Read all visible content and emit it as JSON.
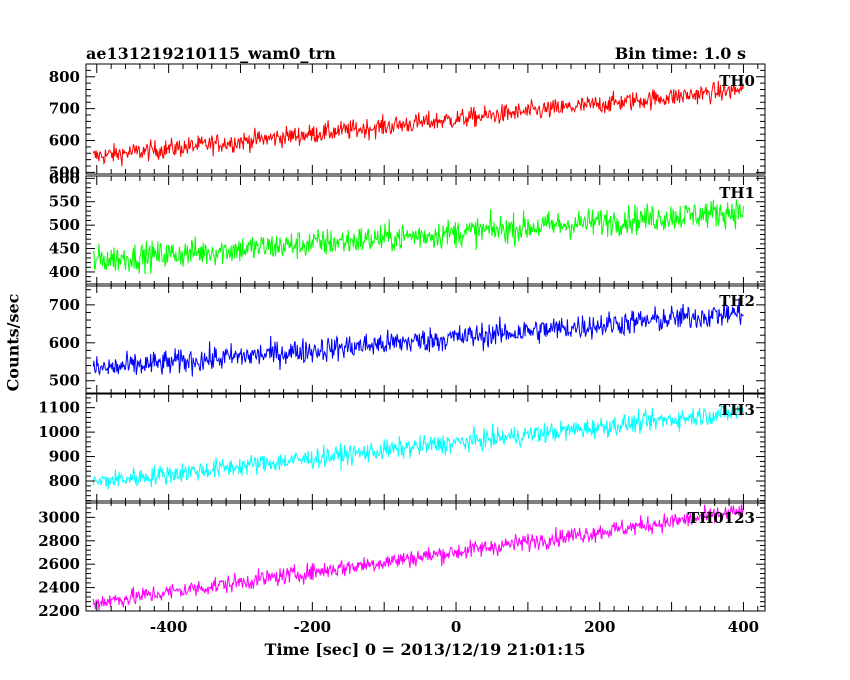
{
  "header": {
    "title": "ae131219210115_wam0_trn",
    "bin_time": "Bin time: 1.0 s"
  },
  "chart_data": {
    "type": "line",
    "title": "ae131219210115_wam0_trn",
    "subtitle": "Bin time: 1.0 s",
    "xlabel": "Time [sec] 0 = 2013/12/19 21:01:15",
    "ylabel": "Counts/sec",
    "xlim": [
      -515,
      430
    ],
    "x_ticks": [
      -400,
      -200,
      0,
      200,
      400
    ],
    "x_range_data": [
      -505,
      400
    ],
    "x_step": 1.0,
    "grid": false,
    "panels": [
      {
        "name": "TH0",
        "color": "#ff0000",
        "ylim": [
          495,
          840
        ],
        "y_ticks": [
          500,
          600,
          700,
          800
        ],
        "trend_start": 550,
        "trend_end": 760,
        "noise": 22,
        "series": [
          {
            "name": "TH0",
            "x": [
              -500,
              -400,
              -300,
              -200,
              -100,
              0,
              100,
              200,
              300,
              400
            ],
            "values": [
              550,
              570,
              595,
              615,
              640,
              665,
              690,
              715,
              740,
              760
            ]
          }
        ]
      },
      {
        "name": "TH1",
        "color": "#00ff00",
        "ylim": [
          370,
          605
        ],
        "y_ticks": [
          400,
          450,
          500,
          550,
          600
        ],
        "trend_start": 425,
        "trend_end": 530,
        "noise": 22,
        "series": [
          {
            "name": "TH1",
            "x": [
              -500,
              -400,
              -300,
              -200,
              -100,
              0,
              100,
              200,
              300,
              400
            ],
            "values": [
              425,
              437,
              448,
              460,
              472,
              484,
              495,
              507,
              518,
              530
            ]
          }
        ]
      },
      {
        "name": "TH2",
        "color": "#0000ff",
        "ylim": [
          465,
          755
        ],
        "y_ticks": [
          500,
          600,
          700
        ],
        "trend_start": 530,
        "trend_end": 680,
        "noise": 24,
        "series": [
          {
            "name": "TH2",
            "x": [
              -500,
              -400,
              -300,
              -200,
              -100,
              0,
              100,
              200,
              300,
              400
            ],
            "values": [
              530,
              545,
              563,
              580,
              597,
              613,
              630,
              647,
              663,
              680
            ]
          }
        ]
      },
      {
        "name": "TH3",
        "color": "#00ffff",
        "ylim": [
          710,
          1160
        ],
        "y_ticks": [
          800,
          900,
          1000,
          1100
        ],
        "trend_start": 795,
        "trend_end": 1085,
        "noise": 30,
        "series": [
          {
            "name": "TH3",
            "x": [
              -500,
              -400,
              -300,
              -200,
              -100,
              0,
              100,
              200,
              300,
              400
            ],
            "values": [
              795,
              827,
              860,
              892,
              924,
              956,
              988,
              1021,
              1053,
              1085
            ]
          }
        ]
      },
      {
        "name": "TH0123",
        "color": "#ff00ff",
        "ylim": [
          2200,
          3140
        ],
        "y_ticks": [
          2200,
          2400,
          2600,
          2800,
          3000
        ],
        "trend_start": 2270,
        "trend_end": 3050,
        "noise": 55,
        "series": [
          {
            "name": "TH0123",
            "x": [
              -500,
              -400,
              -300,
              -200,
              -100,
              0,
              100,
              200,
              300,
              400
            ],
            "values": [
              2270,
              2357,
              2443,
              2530,
              2617,
              2703,
              2790,
              2877,
              2963,
              3050
            ]
          }
        ]
      }
    ]
  }
}
